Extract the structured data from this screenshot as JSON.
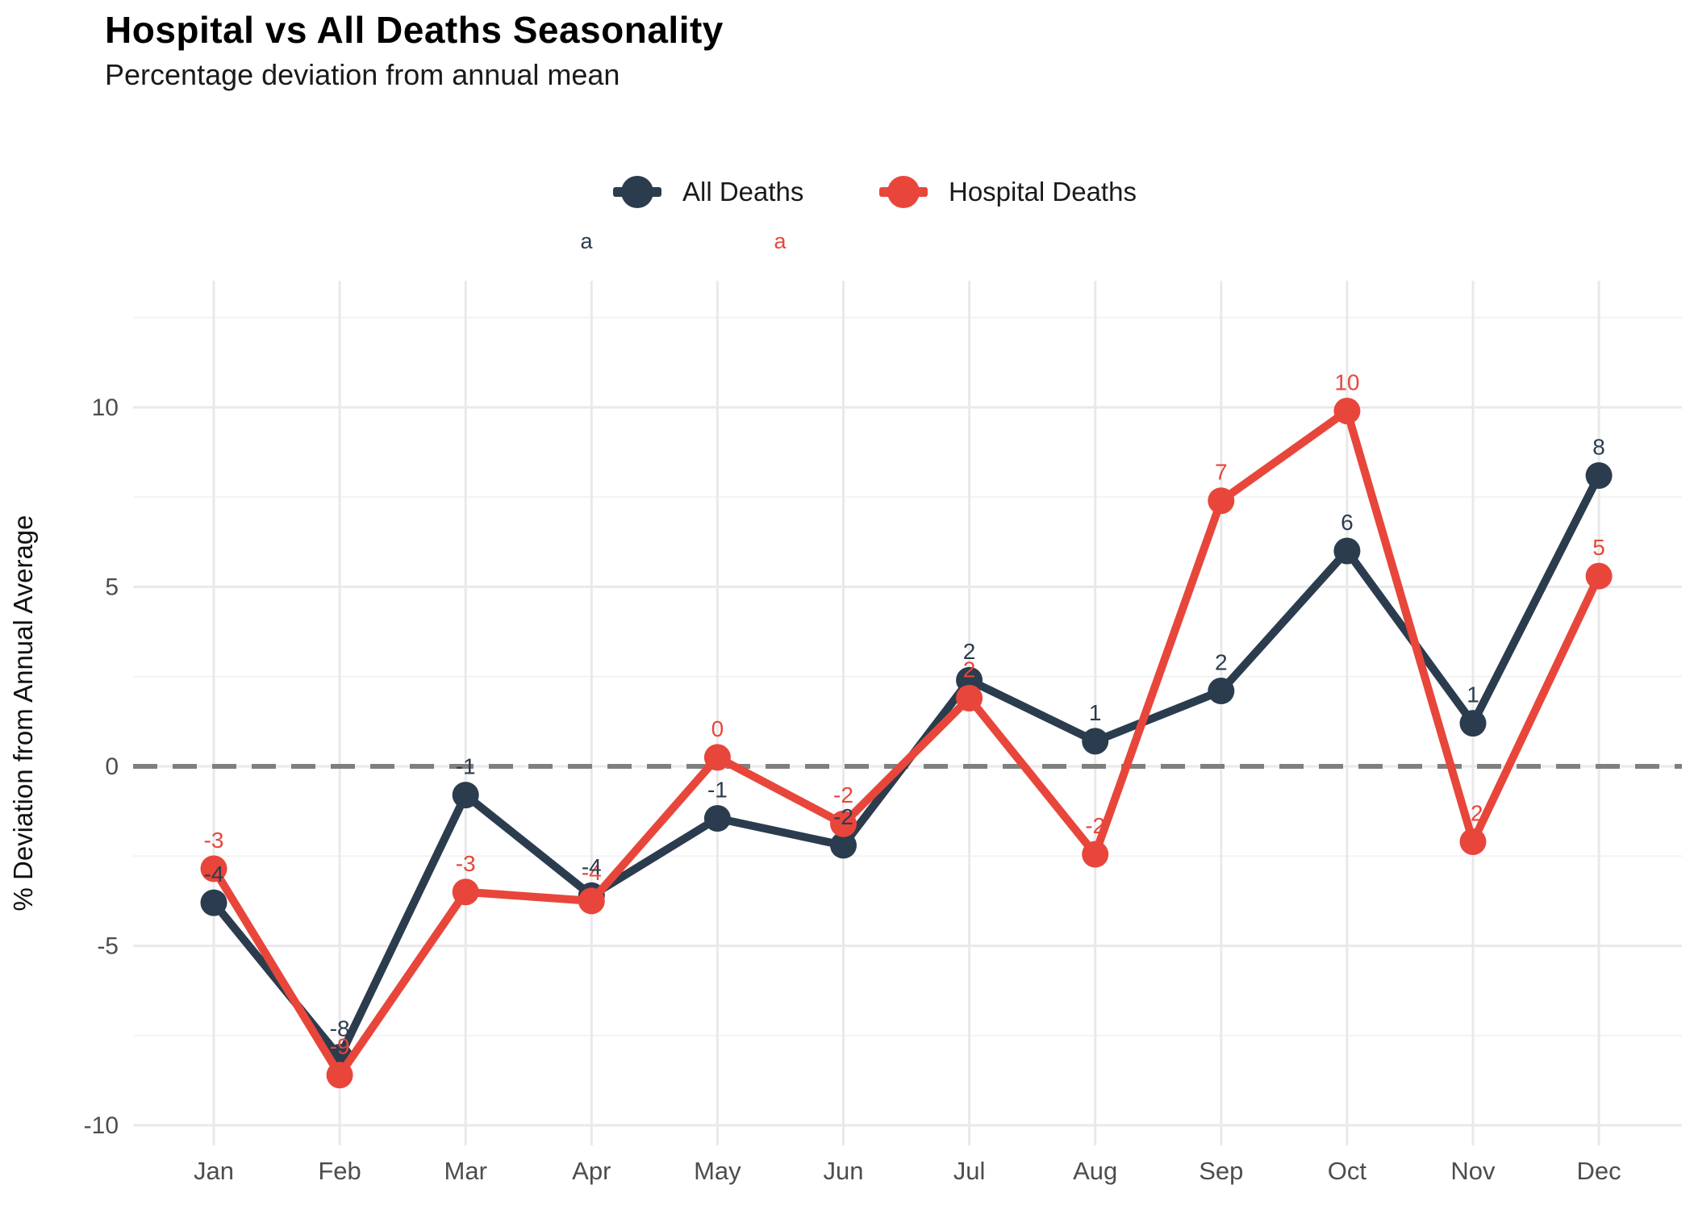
{
  "header": {
    "title": "Hospital vs All Deaths Seasonality",
    "subtitle": "Percentage deviation from annual mean"
  },
  "legend": {
    "position": "top",
    "items": [
      {
        "label": "All Deaths",
        "color": "#2b3c4e",
        "key_text": "a"
      },
      {
        "label": "Hospital Deaths",
        "color": "#e8463b",
        "key_text": "a"
      }
    ]
  },
  "y_axis": {
    "title": "% Deviation from Annual Average",
    "tick_labels": [
      "10",
      "5",
      "0",
      "-5",
      "-10"
    ],
    "tick_color": "#4d4d4d"
  },
  "x_axis": {
    "tick_labels": [
      "Jan",
      "Feb",
      "Mar",
      "Apr",
      "May",
      "Jun",
      "Jul",
      "Aug",
      "Sep",
      "Oct",
      "Nov",
      "Dec"
    ],
    "tick_color": "#4d4d4d"
  },
  "colors": {
    "all_deaths": "#2b3c4e",
    "hospital_deaths": "#e8463b",
    "zero_line": "#7f7f7f",
    "grid_major": "#e9e9e9",
    "grid_minor": "#f3f3f3",
    "background": "#ffffff"
  },
  "chart_data": {
    "type": "line",
    "title": "Hospital vs All Deaths Seasonality",
    "subtitle": "Percentage deviation from annual mean",
    "xlabel": "",
    "ylabel": "% Deviation from Annual Average",
    "categories": [
      "Jan",
      "Feb",
      "Mar",
      "Apr",
      "May",
      "Jun",
      "Jul",
      "Aug",
      "Sep",
      "Oct",
      "Nov",
      "Dec"
    ],
    "ylim": [
      -10.6,
      13.5
    ],
    "yticks_major": [
      -10,
      -5,
      0,
      5,
      10
    ],
    "yticks_minor": [
      -7.5,
      -2.5,
      2.5,
      7.5,
      12.5
    ],
    "grid": true,
    "legend_position": "top",
    "annotations": {
      "zero_reference_line": 0,
      "zero_line_style": "dashed"
    },
    "series": [
      {
        "name": "All Deaths",
        "color": "#2b3c4e",
        "values": [
          -3.8,
          -8.1,
          -0.8,
          -3.6,
          -1.45,
          -2.2,
          2.4,
          0.7,
          2.1,
          6.0,
          1.2,
          8.1
        ],
        "point_labels": [
          "-4",
          "-8",
          "-1",
          "-4",
          "-1",
          "-2",
          "2",
          "1",
          "2",
          "6",
          "1",
          "8"
        ]
      },
      {
        "name": "Hospital Deaths",
        "color": "#e8463b",
        "values": [
          -2.85,
          -8.6,
          -3.5,
          -3.75,
          0.25,
          -1.6,
          1.9,
          -2.45,
          7.4,
          9.9,
          -2.1,
          5.3
        ],
        "point_labels": [
          "-3",
          "-9",
          "-3",
          "-4",
          "0",
          "-2",
          "2",
          "-2",
          "7",
          "10",
          "-2",
          "5"
        ]
      }
    ]
  }
}
